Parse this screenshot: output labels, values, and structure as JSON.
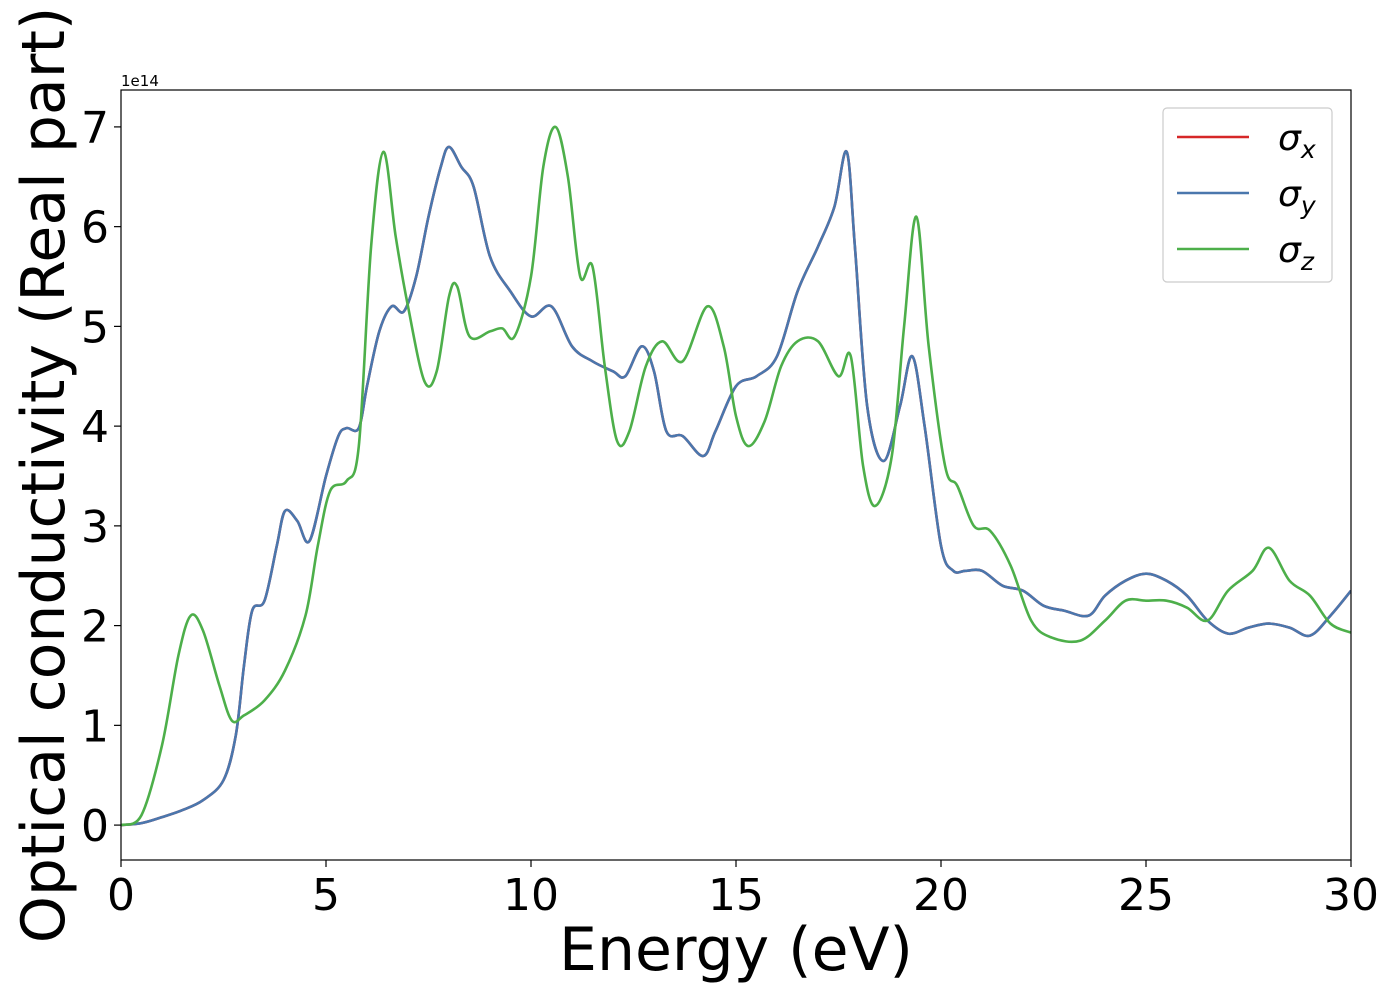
{
  "chart_data": {
    "type": "line",
    "title": "",
    "xlabel": "Energy (eV)",
    "ylabel": "Optical conductivity (Real part)",
    "y_offset_label": "1e14",
    "xlim": [
      0,
      30
    ],
    "ylim": [
      -0.35,
      7.37
    ],
    "x_ticks": [
      0,
      5,
      10,
      15,
      20,
      25,
      30
    ],
    "x_tick_labels": [
      "0",
      "5",
      "10",
      "15",
      "20",
      "25",
      "30"
    ],
    "y_ticks": [
      0,
      1,
      2,
      3,
      4,
      5,
      6,
      7
    ],
    "y_tick_labels": [
      "0",
      "1",
      "2",
      "3",
      "4",
      "5",
      "6",
      "7"
    ],
    "grid": false,
    "legend": {
      "placement": "top-right"
    },
    "series": [
      {
        "name": "x",
        "legend_symbol": "σ",
        "color": "#d62728",
        "points": [
          [
            0,
            0
          ],
          [
            0.5,
            0.02
          ],
          [
            1,
            0.08
          ],
          [
            1.5,
            0.15
          ],
          [
            2,
            0.25
          ],
          [
            2.5,
            0.45
          ],
          [
            2.8,
            0.9
          ],
          [
            3,
            1.6
          ],
          [
            3.2,
            2.15
          ],
          [
            3.5,
            2.25
          ],
          [
            3.8,
            2.8
          ],
          [
            4,
            3.15
          ],
          [
            4.3,
            3.05
          ],
          [
            4.6,
            2.85
          ],
          [
            5,
            3.5
          ],
          [
            5.3,
            3.9
          ],
          [
            5.5,
            3.98
          ],
          [
            5.8,
            3.98
          ],
          [
            6,
            4.4
          ],
          [
            6.3,
            4.95
          ],
          [
            6.6,
            5.2
          ],
          [
            6.9,
            5.15
          ],
          [
            7.2,
            5.5
          ],
          [
            7.5,
            6.1
          ],
          [
            7.8,
            6.6
          ],
          [
            8,
            6.8
          ],
          [
            8.3,
            6.6
          ],
          [
            8.6,
            6.4
          ],
          [
            9,
            5.7
          ],
          [
            9.5,
            5.35
          ],
          [
            10,
            5.1
          ],
          [
            10.5,
            5.2
          ],
          [
            11,
            4.8
          ],
          [
            11.5,
            4.65
          ],
          [
            12,
            4.55
          ],
          [
            12.3,
            4.5
          ],
          [
            12.7,
            4.8
          ],
          [
            13,
            4.55
          ],
          [
            13.3,
            3.95
          ],
          [
            13.7,
            3.9
          ],
          [
            14.2,
            3.7
          ],
          [
            14.5,
            3.95
          ],
          [
            15,
            4.4
          ],
          [
            15.5,
            4.5
          ],
          [
            16,
            4.7
          ],
          [
            16.5,
            5.35
          ],
          [
            17,
            5.8
          ],
          [
            17.4,
            6.2
          ],
          [
            17.7,
            6.75
          ],
          [
            17.9,
            5.8
          ],
          [
            18.2,
            4.2
          ],
          [
            18.6,
            3.65
          ],
          [
            19,
            4.2
          ],
          [
            19.3,
            4.7
          ],
          [
            19.6,
            4
          ],
          [
            20,
            2.8
          ],
          [
            20.3,
            2.55
          ],
          [
            20.6,
            2.55
          ],
          [
            21,
            2.55
          ],
          [
            21.5,
            2.4
          ],
          [
            22,
            2.35
          ],
          [
            22.5,
            2.2
          ],
          [
            23,
            2.15
          ],
          [
            23.6,
            2.1
          ],
          [
            24,
            2.3
          ],
          [
            24.5,
            2.45
          ],
          [
            25,
            2.52
          ],
          [
            25.5,
            2.45
          ],
          [
            26,
            2.3
          ],
          [
            26.5,
            2.05
          ],
          [
            27,
            1.92
          ],
          [
            27.5,
            1.98
          ],
          [
            28,
            2.02
          ],
          [
            28.5,
            1.98
          ],
          [
            29,
            1.9
          ],
          [
            29.5,
            2.1
          ],
          [
            30,
            2.35
          ]
        ]
      },
      {
        "name": "y",
        "legend_symbol": "σ",
        "color": "#4a77ad",
        "points": [
          [
            0,
            0
          ],
          [
            0.5,
            0.02
          ],
          [
            1,
            0.08
          ],
          [
            1.5,
            0.15
          ],
          [
            2,
            0.25
          ],
          [
            2.5,
            0.45
          ],
          [
            2.8,
            0.9
          ],
          [
            3,
            1.6
          ],
          [
            3.2,
            2.15
          ],
          [
            3.5,
            2.25
          ],
          [
            3.8,
            2.8
          ],
          [
            4,
            3.15
          ],
          [
            4.3,
            3.05
          ],
          [
            4.6,
            2.85
          ],
          [
            5,
            3.5
          ],
          [
            5.3,
            3.9
          ],
          [
            5.5,
            3.98
          ],
          [
            5.8,
            3.98
          ],
          [
            6,
            4.4
          ],
          [
            6.3,
            4.95
          ],
          [
            6.6,
            5.2
          ],
          [
            6.9,
            5.15
          ],
          [
            7.2,
            5.5
          ],
          [
            7.5,
            6.1
          ],
          [
            7.8,
            6.6
          ],
          [
            8,
            6.8
          ],
          [
            8.3,
            6.6
          ],
          [
            8.6,
            6.4
          ],
          [
            9,
            5.7
          ],
          [
            9.5,
            5.35
          ],
          [
            10,
            5.1
          ],
          [
            10.5,
            5.2
          ],
          [
            11,
            4.8
          ],
          [
            11.5,
            4.65
          ],
          [
            12,
            4.55
          ],
          [
            12.3,
            4.5
          ],
          [
            12.7,
            4.8
          ],
          [
            13,
            4.55
          ],
          [
            13.3,
            3.95
          ],
          [
            13.7,
            3.9
          ],
          [
            14.2,
            3.7
          ],
          [
            14.5,
            3.95
          ],
          [
            15,
            4.4
          ],
          [
            15.5,
            4.5
          ],
          [
            16,
            4.7
          ],
          [
            16.5,
            5.35
          ],
          [
            17,
            5.8
          ],
          [
            17.4,
            6.2
          ],
          [
            17.7,
            6.75
          ],
          [
            17.9,
            5.8
          ],
          [
            18.2,
            4.2
          ],
          [
            18.6,
            3.65
          ],
          [
            19,
            4.2
          ],
          [
            19.3,
            4.7
          ],
          [
            19.6,
            4
          ],
          [
            20,
            2.8
          ],
          [
            20.3,
            2.55
          ],
          [
            20.6,
            2.55
          ],
          [
            21,
            2.55
          ],
          [
            21.5,
            2.4
          ],
          [
            22,
            2.35
          ],
          [
            22.5,
            2.2
          ],
          [
            23,
            2.15
          ],
          [
            23.6,
            2.1
          ],
          [
            24,
            2.3
          ],
          [
            24.5,
            2.45
          ],
          [
            25,
            2.52
          ],
          [
            25.5,
            2.45
          ],
          [
            26,
            2.3
          ],
          [
            26.5,
            2.05
          ],
          [
            27,
            1.92
          ],
          [
            27.5,
            1.98
          ],
          [
            28,
            2.02
          ],
          [
            28.5,
            1.98
          ],
          [
            29,
            1.9
          ],
          [
            29.5,
            2.1
          ],
          [
            30,
            2.35
          ]
        ]
      },
      {
        "name": "z",
        "legend_symbol": "σ",
        "color": "#4daf4a",
        "points": [
          [
            0,
            0
          ],
          [
            0.5,
            0.1
          ],
          [
            1,
            0.8
          ],
          [
            1.4,
            1.7
          ],
          [
            1.7,
            2.1
          ],
          [
            2,
            1.95
          ],
          [
            2.4,
            1.4
          ],
          [
            2.7,
            1.05
          ],
          [
            3,
            1.1
          ],
          [
            3.5,
            1.25
          ],
          [
            4,
            1.55
          ],
          [
            4.5,
            2.1
          ],
          [
            4.8,
            2.8
          ],
          [
            5.1,
            3.35
          ],
          [
            5.5,
            3.45
          ],
          [
            5.8,
            3.8
          ],
          [
            6.1,
            5.8
          ],
          [
            6.4,
            6.75
          ],
          [
            6.7,
            5.9
          ],
          [
            7,
            5.2
          ],
          [
            7.4,
            4.45
          ],
          [
            7.7,
            4.55
          ],
          [
            8,
            5.3
          ],
          [
            8.2,
            5.4
          ],
          [
            8.5,
            4.9
          ],
          [
            9,
            4.95
          ],
          [
            9.3,
            4.98
          ],
          [
            9.6,
            4.9
          ],
          [
            10,
            5.5
          ],
          [
            10.3,
            6.6
          ],
          [
            10.6,
            7
          ],
          [
            10.9,
            6.5
          ],
          [
            11.2,
            5.5
          ],
          [
            11.5,
            5.6
          ],
          [
            11.8,
            4.6
          ],
          [
            12.1,
            3.85
          ],
          [
            12.4,
            3.95
          ],
          [
            12.8,
            4.6
          ],
          [
            13.2,
            4.85
          ],
          [
            13.7,
            4.65
          ],
          [
            14.3,
            5.2
          ],
          [
            14.7,
            4.8
          ],
          [
            15,
            4.1
          ],
          [
            15.3,
            3.8
          ],
          [
            15.7,
            4.05
          ],
          [
            16.1,
            4.6
          ],
          [
            16.5,
            4.85
          ],
          [
            17,
            4.85
          ],
          [
            17.5,
            4.5
          ],
          [
            17.8,
            4.7
          ],
          [
            18.1,
            3.6
          ],
          [
            18.4,
            3.2
          ],
          [
            18.8,
            3.7
          ],
          [
            19.1,
            5
          ],
          [
            19.4,
            6.1
          ],
          [
            19.7,
            4.8
          ],
          [
            20.1,
            3.6
          ],
          [
            20.4,
            3.4
          ],
          [
            20.8,
            3
          ],
          [
            21.2,
            2.95
          ],
          [
            21.7,
            2.6
          ],
          [
            22.2,
            2.05
          ],
          [
            22.7,
            1.88
          ],
          [
            23.4,
            1.85
          ],
          [
            24,
            2.05
          ],
          [
            24.5,
            2.25
          ],
          [
            25,
            2.25
          ],
          [
            25.5,
            2.25
          ],
          [
            26,
            2.18
          ],
          [
            26.5,
            2.05
          ],
          [
            27,
            2.35
          ],
          [
            27.6,
            2.55
          ],
          [
            28,
            2.78
          ],
          [
            28.5,
            2.45
          ],
          [
            29,
            2.3
          ],
          [
            29.5,
            2.02
          ],
          [
            30,
            1.93
          ]
        ]
      }
    ]
  }
}
